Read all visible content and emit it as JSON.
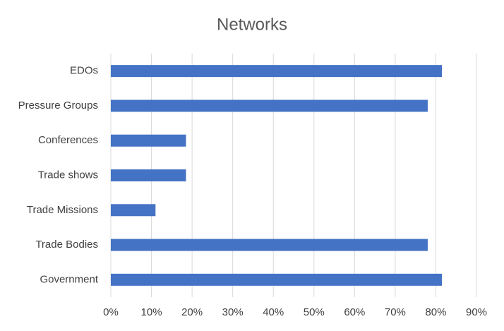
{
  "chart_data": {
    "type": "bar",
    "orientation": "horizontal",
    "title": "Networks",
    "categories": [
      "EDOs",
      "Pressure Groups",
      "Conferences",
      "Trade shows",
      "Trade Missions",
      "Trade Bodies",
      "Government"
    ],
    "values": [
      81.5,
      78,
      18.5,
      18.5,
      11,
      78,
      81.5
    ],
    "color": "#4472c4",
    "xlim": [
      0,
      90
    ],
    "xticks": [
      {
        "value": 0,
        "label": "0%"
      },
      {
        "value": 10,
        "label": "10%"
      },
      {
        "value": 20,
        "label": "20%"
      },
      {
        "value": 30,
        "label": "30%"
      },
      {
        "value": 40,
        "label": "40%"
      },
      {
        "value": 50,
        "label": "50%"
      },
      {
        "value": 60,
        "label": "60%"
      },
      {
        "value": 70,
        "label": "70%"
      },
      {
        "value": 80,
        "label": "80%"
      },
      {
        "value": 90,
        "label": "90%"
      }
    ],
    "grid": true
  }
}
